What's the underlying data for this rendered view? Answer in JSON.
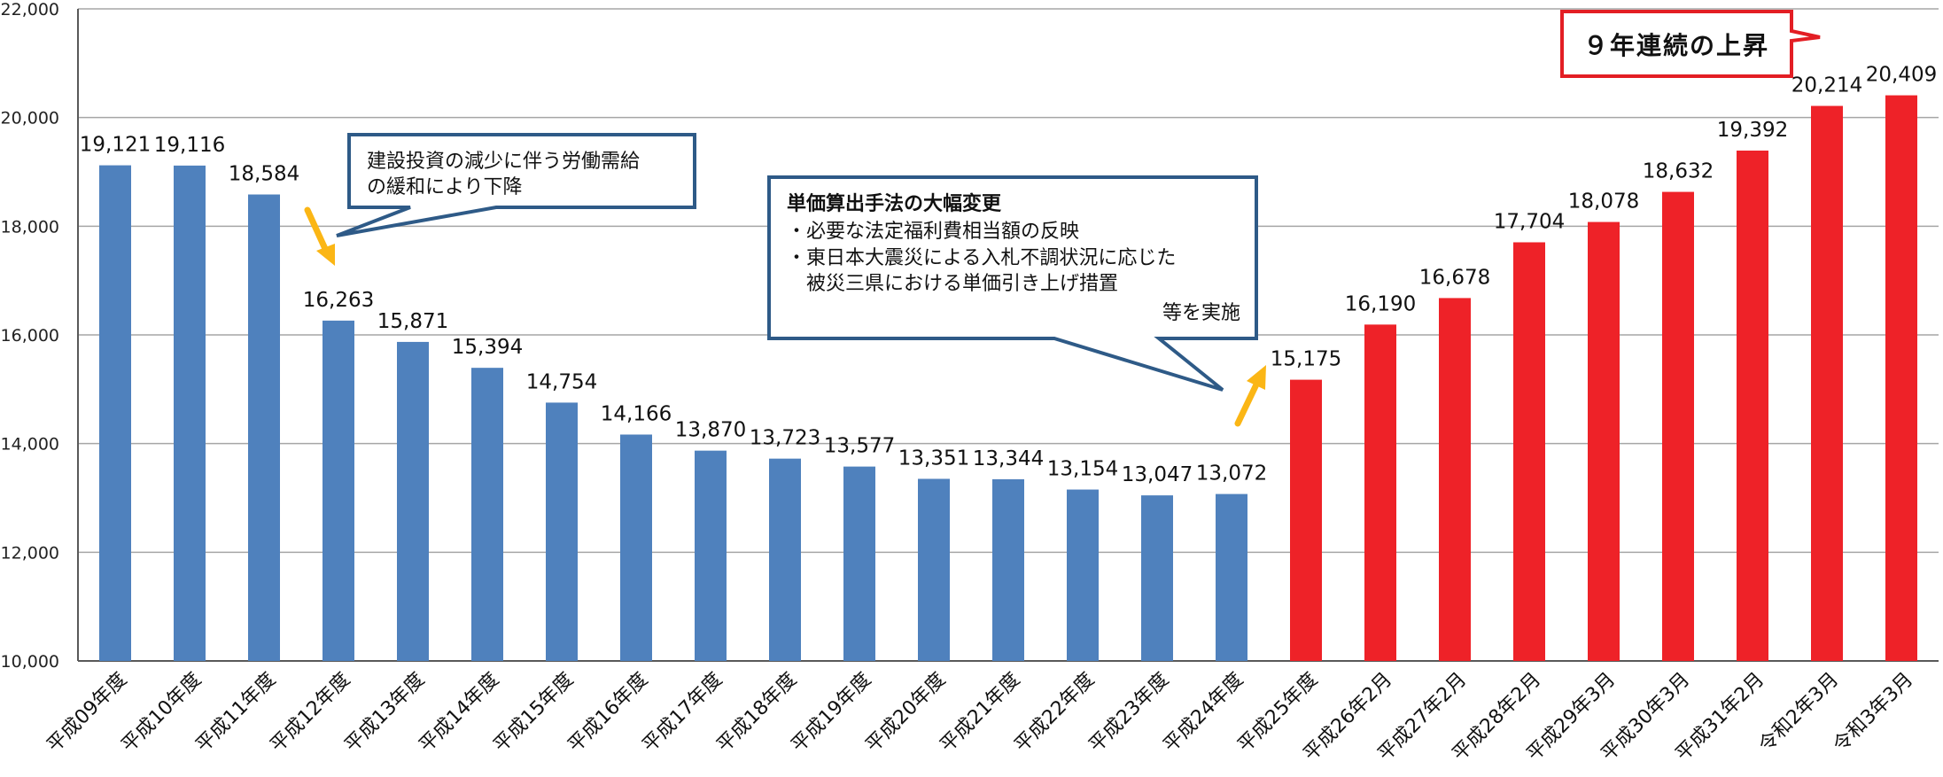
{
  "chart_data": {
    "type": "bar",
    "title": "",
    "xlabel": "",
    "ylabel": "",
    "ylim": [
      10000,
      22000
    ],
    "yticks": [
      10000,
      12000,
      14000,
      16000,
      18000,
      20000,
      22000
    ],
    "ytick_labels": [
      "10,000",
      "12,000",
      "14,000",
      "16,000",
      "18,000",
      "20,000",
      "22,000"
    ],
    "grid": true,
    "categories": [
      "平成09年度",
      "平成10年度",
      "平成11年度",
      "平成12年度",
      "平成13年度",
      "平成14年度",
      "平成15年度",
      "平成16年度",
      "平成17年度",
      "平成18年度",
      "平成19年度",
      "平成20年度",
      "平成21年度",
      "平成22年度",
      "平成23年度",
      "平成24年度",
      "平成25年度",
      "平成26年2月",
      "平成27年2月",
      "平成28年2月",
      "平成29年3月",
      "平成30年3月",
      "平成31年2月",
      "令和2年3月",
      "令和3年3月"
    ],
    "values": [
      19121,
      19116,
      18584,
      16263,
      15871,
      15394,
      14754,
      14166,
      13870,
      13723,
      13577,
      13351,
      13344,
      13154,
      13047,
      13072,
      15175,
      16190,
      16678,
      17704,
      18078,
      18632,
      19392,
      20214,
      20409
    ],
    "value_labels": [
      "19,121",
      "19,116",
      "18,584",
      "16,263",
      "15,871",
      "15,394",
      "14,754",
      "14,166",
      "13,870",
      "13,723",
      "13,577",
      "13,351",
      "13,344",
      "13,154",
      "13,047",
      "13,072",
      "15,175",
      "16,190",
      "16,678",
      "17,704",
      "18,078",
      "18,632",
      "19,392",
      "20,214",
      "20,409"
    ],
    "bar_colors": [
      "#4f81bd",
      "#4f81bd",
      "#4f81bd",
      "#4f81bd",
      "#4f81bd",
      "#4f81bd",
      "#4f81bd",
      "#4f81bd",
      "#4f81bd",
      "#4f81bd",
      "#4f81bd",
      "#4f81bd",
      "#4f81bd",
      "#4f81bd",
      "#4f81bd",
      "#4f81bd",
      "#ee2228",
      "#ee2228",
      "#ee2228",
      "#ee2228",
      "#ee2228",
      "#ee2228",
      "#ee2228",
      "#ee2228",
      "#ee2228"
    ],
    "annotations": {
      "decline_lines": [
        "建設投資の減少に伴う労働需給",
        "の緩和により下降"
      ],
      "method_title": "単価算出手法の大幅変更",
      "method_lines": [
        "・必要な法定福利費相当額の反映",
        "・東日本大震災による入札不調状況に応じた",
        "　被災三県における単価引き上げ措置"
      ],
      "method_footer": "等を実施",
      "rise_badge": "９年連続の上昇"
    },
    "colors": {
      "blue_bar": "#4f81bd",
      "red_bar": "#ee2228",
      "callout_border": "#2e5a87",
      "badge_border": "#e31e24",
      "arrow": "#fbb615",
      "grid": "#a6a6a6"
    }
  }
}
